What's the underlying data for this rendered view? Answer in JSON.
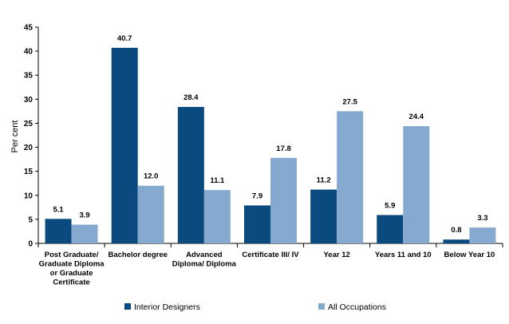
{
  "chart_data": {
    "type": "bar",
    "title": "",
    "xlabel": "",
    "ylabel": "Per cent",
    "ylim": [
      0,
      45
    ],
    "yticks": [
      0,
      5,
      10,
      15,
      20,
      25,
      30,
      35,
      40,
      45
    ],
    "grid": false,
    "legend_position": "bottom",
    "categories": [
      "Post Graduate/ Graduate Diploma or Graduate Certificate",
      "Bachelor degree",
      "Advanced Diploma/ Diploma",
      "Certificate III/ IV",
      "Year 12",
      "Years 11 and 10",
      "Below Year 10"
    ],
    "category_lines": [
      [
        "Post Graduate/",
        "Graduate Diploma",
        "or Graduate",
        "Certificate"
      ],
      [
        "Bachelor degree"
      ],
      [
        "Advanced",
        "Diploma/ Diploma"
      ],
      [
        "Certificate III/ IV"
      ],
      [
        "Year 12"
      ],
      [
        "Years 11 and 10"
      ],
      [
        "Below Year 10"
      ]
    ],
    "series": [
      {
        "name": "Interior Designers",
        "color": "#0b4a7e",
        "values": [
          5.1,
          40.7,
          28.4,
          7.9,
          11.2,
          5.9,
          0.8
        ],
        "labels": [
          "5.1",
          "40.7",
          "28.4",
          "7.9",
          "11.2",
          "5.9",
          "0.8"
        ]
      },
      {
        "name": "All Occupations",
        "color": "#86a9cf",
        "values": [
          3.9,
          12.0,
          11.1,
          17.8,
          27.5,
          24.4,
          3.3
        ],
        "labels": [
          "3.9",
          "12.0",
          "11.1",
          "17.8",
          "27.5",
          "24.4",
          "3.3"
        ]
      }
    ]
  }
}
